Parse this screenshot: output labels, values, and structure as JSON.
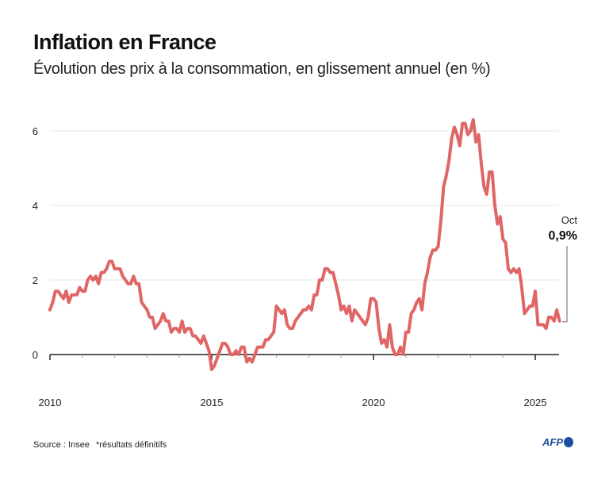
{
  "header": {
    "title": "Inflation en France",
    "subtitle": "Évolution des prix à la consommation, en glissement annuel (en %)"
  },
  "footer": {
    "source": "Source : Insee",
    "note": "*résultats définitifs",
    "logo": "AFP"
  },
  "chart_data": {
    "type": "line",
    "title": "Inflation en France",
    "subtitle": "Évolution des prix à la consommation, en glissement annuel (en %)",
    "xlabel": "",
    "ylabel": "",
    "x_start": "2010-01",
    "frequency": "monthly",
    "xlim": [
      2010,
      2025.83
    ],
    "ylim": [
      -0.6,
      6.6
    ],
    "y_ticks": [
      0,
      2,
      4,
      6
    ],
    "x_ticks": [
      2010,
      2015,
      2020,
      2025
    ],
    "grid": "horizontal",
    "line_color": "#e06666",
    "annotation": {
      "month": "Oct",
      "value_label": "0,9%"
    },
    "values": [
      1.2,
      1.4,
      1.7,
      1.7,
      1.6,
      1.5,
      1.7,
      1.4,
      1.6,
      1.6,
      1.6,
      1.8,
      1.7,
      1.7,
      2.0,
      2.1,
      2.0,
      2.1,
      1.9,
      2.2,
      2.2,
      2.3,
      2.5,
      2.5,
      2.3,
      2.3,
      2.3,
      2.1,
      2.0,
      1.9,
      1.9,
      2.1,
      1.9,
      1.9,
      1.4,
      1.3,
      1.2,
      1.0,
      1.0,
      0.7,
      0.8,
      0.9,
      1.1,
      0.9,
      0.9,
      0.6,
      0.7,
      0.7,
      0.6,
      0.9,
      0.6,
      0.7,
      0.7,
      0.5,
      0.5,
      0.4,
      0.3,
      0.5,
      0.3,
      0.1,
      -0.4,
      -0.3,
      -0.1,
      0.1,
      0.3,
      0.3,
      0.2,
      0.0,
      0.0,
      0.1,
      0.0,
      0.2,
      0.2,
      -0.2,
      -0.1,
      -0.2,
      0.0,
      0.2,
      0.2,
      0.2,
      0.4,
      0.4,
      0.5,
      0.6,
      1.3,
      1.2,
      1.1,
      1.2,
      0.8,
      0.7,
      0.7,
      0.9,
      1.0,
      1.1,
      1.2,
      1.2,
      1.3,
      1.2,
      1.6,
      1.6,
      2.0,
      2.0,
      2.3,
      2.3,
      2.2,
      2.2,
      1.9,
      1.6,
      1.2,
      1.3,
      1.1,
      1.3,
      0.9,
      1.2,
      1.1,
      1.0,
      0.9,
      0.8,
      1.0,
      1.5,
      1.5,
      1.4,
      0.7,
      0.3,
      0.4,
      0.2,
      0.8,
      0.2,
      0.0,
      0.0,
      0.2,
      0.0,
      0.6,
      0.6,
      1.1,
      1.2,
      1.4,
      1.5,
      1.2,
      1.9,
      2.2,
      2.6,
      2.8,
      2.8,
      2.9,
      3.6,
      4.5,
      4.8,
      5.2,
      5.8,
      6.1,
      5.9,
      5.6,
      6.2,
      6.2,
      5.9,
      6.0,
      6.3,
      5.7,
      5.9,
      5.1,
      4.5,
      4.3,
      4.9,
      4.9,
      4.0,
      3.5,
      3.7,
      3.1,
      3.0,
      2.3,
      2.2,
      2.3,
      2.2,
      2.3,
      1.8,
      1.1,
      1.2,
      1.3,
      1.3,
      1.7,
      0.8,
      0.8,
      0.8,
      0.7,
      1.0,
      1.0,
      0.9,
      1.2,
      0.9
    ]
  }
}
